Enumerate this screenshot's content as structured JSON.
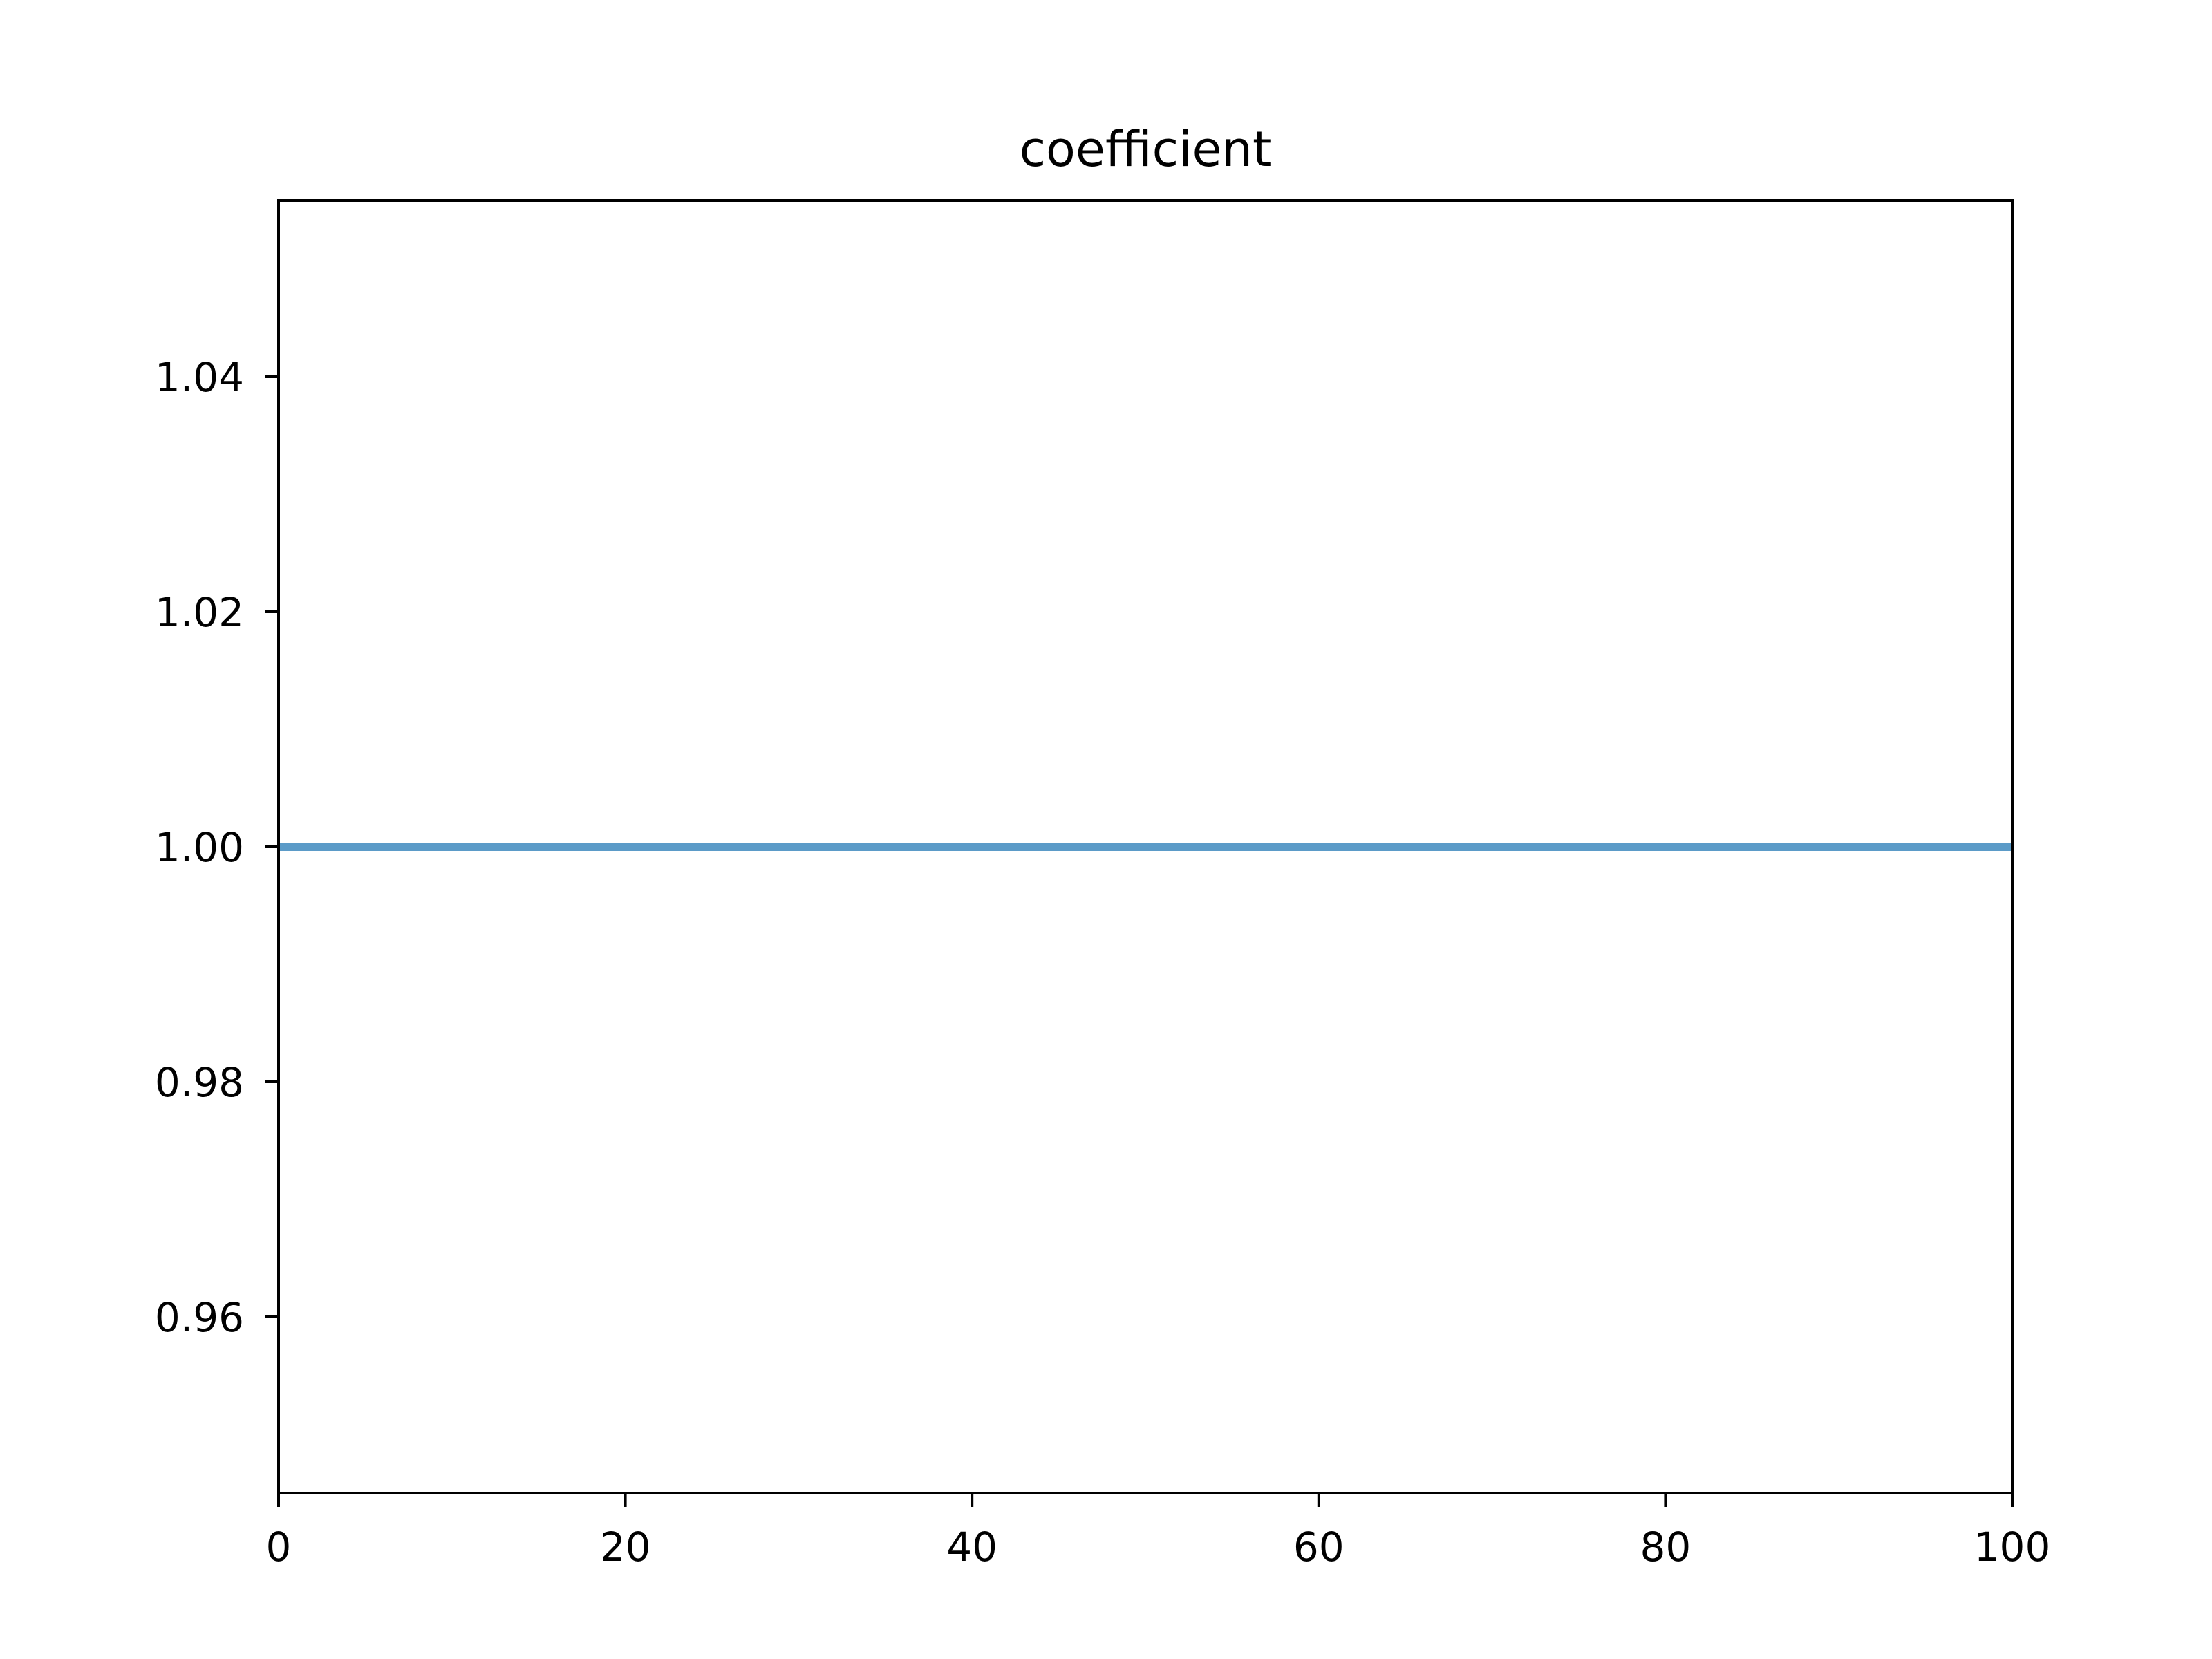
{
  "chart_data": {
    "type": "line",
    "title": "coefficient",
    "xlabel": "",
    "ylabel": "",
    "xlim": [
      0,
      100
    ],
    "ylim": [
      0.945,
      1.055
    ],
    "xticks": [
      0,
      20,
      40,
      60,
      80,
      100
    ],
    "xtick_labels": [
      "0",
      "20",
      "40",
      "60",
      "80",
      "100"
    ],
    "yticks": [
      0.96,
      0.98,
      1.0,
      1.02,
      1.04
    ],
    "ytick_labels": [
      "0.96",
      "0.98",
      "1.00",
      "1.02",
      "1.04"
    ],
    "grid": false,
    "series": [
      {
        "color": "#5b9bc8",
        "x": [
          0,
          100
        ],
        "y": [
          1.0,
          1.0
        ]
      }
    ]
  }
}
